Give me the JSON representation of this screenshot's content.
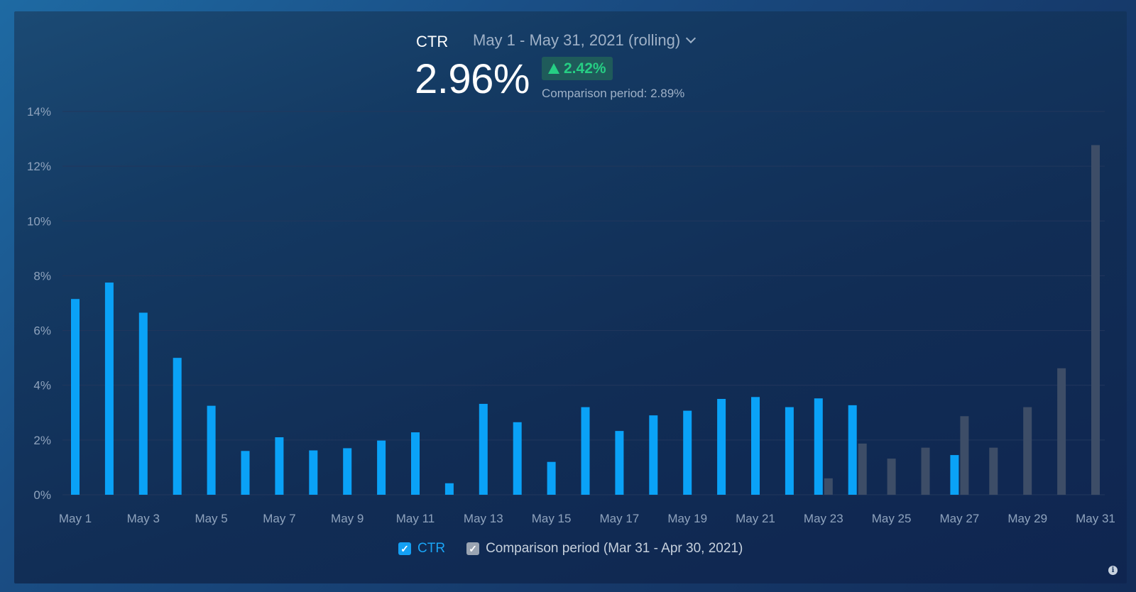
{
  "header": {
    "metric_name": "CTR",
    "period_label": "May 1 - May 31, 2021 (rolling)",
    "value": "2.96%",
    "change": "2.42%",
    "comparison_text": "Comparison period: 2.89%"
  },
  "legend": {
    "ctr_label": "CTR",
    "comparison_label": "Comparison period (Mar 31 - Apr 30, 2021)"
  },
  "icons": {
    "dropdown": "chevron-down-icon",
    "trend": "triangle-up-icon",
    "check": "checkmark-icon",
    "info": "info-icon"
  },
  "colors": {
    "ctr": "#0aa2f7",
    "comparison": "#3d4d67",
    "positive_change": "#26cf84",
    "gridline": "#22375c"
  },
  "chart_data": {
    "type": "bar",
    "ylim": [
      0,
      14
    ],
    "yticks": [
      "0%",
      "2%",
      "4%",
      "6%",
      "8%",
      "10%",
      "12%",
      "14%"
    ],
    "xtick_labels": [
      "May 1",
      "May 3",
      "May 5",
      "May 7",
      "May 9",
      "May 11",
      "May 13",
      "May 15",
      "May 17",
      "May 19",
      "May 21",
      "May 23",
      "May 25",
      "May 27",
      "May 29",
      "May 31"
    ],
    "categories": [
      "May 1",
      "May 2",
      "May 3",
      "May 4",
      "May 5",
      "May 6",
      "May 7",
      "May 8",
      "May 9",
      "May 10",
      "May 11",
      "May 12",
      "May 13",
      "May 14",
      "May 15",
      "May 16",
      "May 17",
      "May 18",
      "May 19",
      "May 20",
      "May 21",
      "May 22",
      "May 23",
      "May 24",
      "May 25",
      "May 26",
      "May 27",
      "May 28",
      "May 29",
      "May 30",
      "May 31"
    ],
    "series": [
      {
        "name": "CTR",
        "values": [
          7.15,
          7.75,
          6.65,
          5.0,
          3.25,
          1.6,
          2.1,
          1.62,
          1.7,
          1.98,
          2.28,
          0.42,
          3.32,
          2.65,
          1.2,
          3.2,
          2.33,
          2.9,
          3.07,
          3.5,
          3.57,
          3.2,
          3.52,
          3.27,
          null,
          null,
          1.45,
          null,
          null,
          null,
          null
        ]
      },
      {
        "name": "Comparison period (Mar 31 - Apr 30, 2021)",
        "values": [
          null,
          null,
          null,
          null,
          null,
          null,
          null,
          null,
          null,
          null,
          null,
          null,
          null,
          null,
          null,
          null,
          null,
          null,
          null,
          null,
          null,
          null,
          0.6,
          1.87,
          1.32,
          1.72,
          2.87,
          1.72,
          3.2,
          4.62,
          12.77
        ]
      }
    ],
    "grid": true,
    "legend_position": "bottom-center"
  }
}
